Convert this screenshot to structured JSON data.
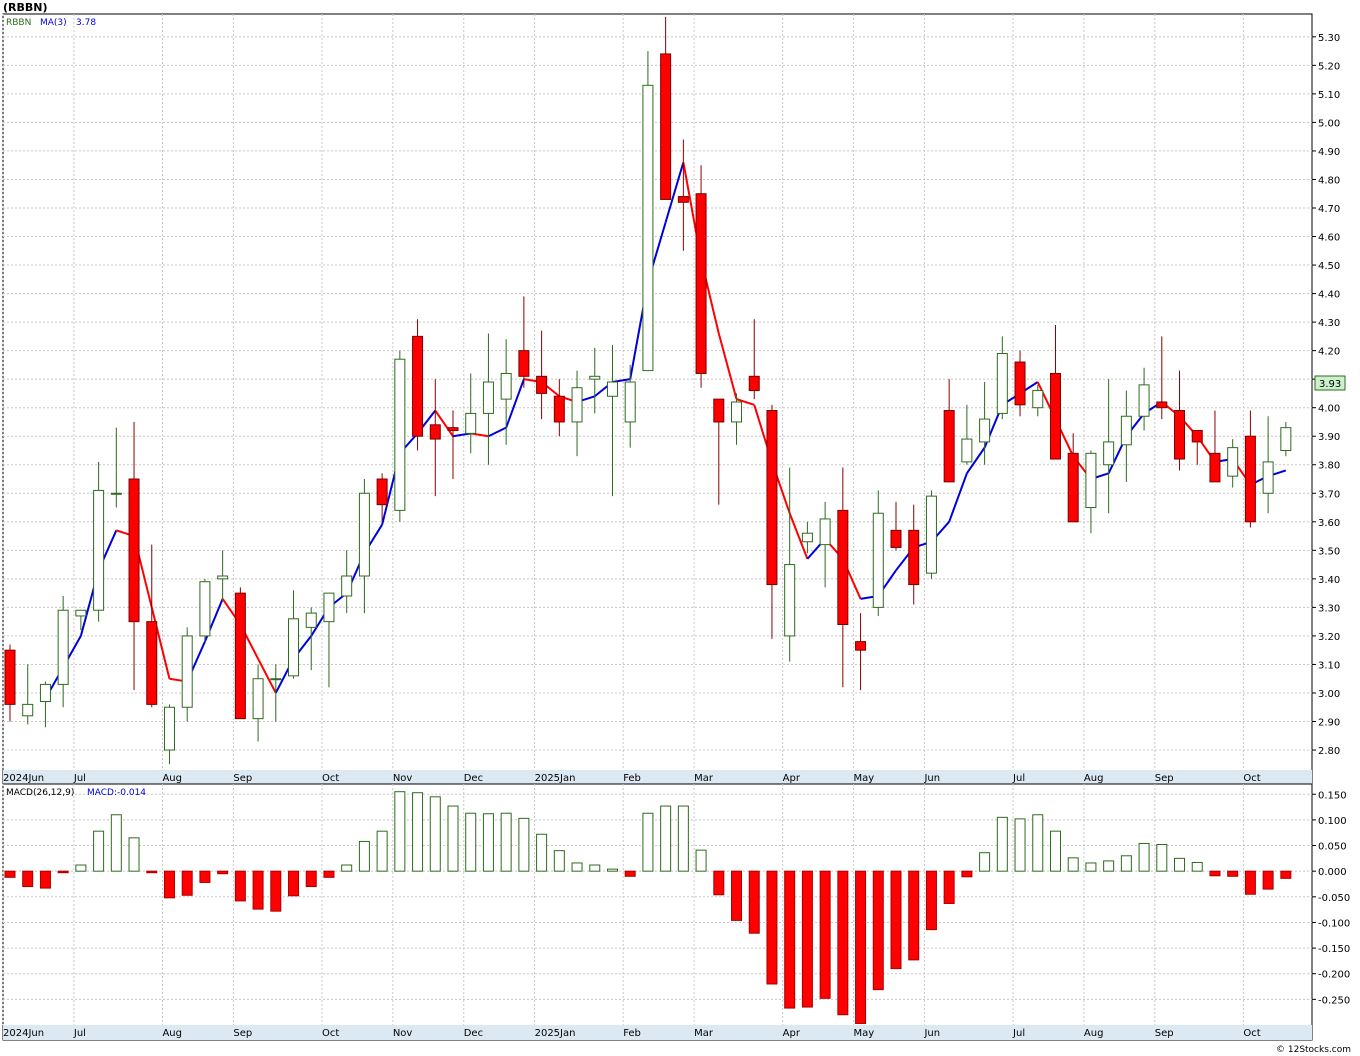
{
  "header": {
    "symbol_label": "(RBBN)"
  },
  "legend": {
    "symbol": "RBBN",
    "ma_label": "MA(3)",
    "ma_value": "3.78"
  },
  "macd_legend": {
    "label": "MACD(26,12,9)",
    "value_label": "MACD:-0.014"
  },
  "price_badge": "3.93",
  "footer": {
    "credit": "© 12Stocks.com"
  },
  "colors": {
    "up": "#2e6b1e",
    "down": "#ff0000",
    "ma_up": "#0000dd",
    "ma_down": "#ff0000",
    "grid": "#c8c8c8",
    "axis_band": "#dde9f2",
    "frame": "#000000"
  },
  "chart_data": [
    {
      "type": "candlestick",
      "series_name": "RBBN",
      "y_ticks": [
        "2.80",
        "2.90",
        "3.00",
        "3.10",
        "3.20",
        "3.30",
        "3.40",
        "3.50",
        "3.60",
        "3.70",
        "3.80",
        "3.90",
        "4.00",
        "4.10",
        "4.20",
        "4.30",
        "4.40",
        "4.50",
        "4.60",
        "4.70",
        "4.80",
        "4.90",
        "5.00",
        "5.10",
        "5.20",
        "5.30"
      ],
      "ylim": [
        2.73,
        5.38
      ],
      "x_labels": [
        {
          "label": "2024Jun",
          "i": 0
        },
        {
          "label": "Jul",
          "i": 4
        },
        {
          "label": "Aug",
          "i": 9
        },
        {
          "label": "Sep",
          "i": 13
        },
        {
          "label": "Oct",
          "i": 18
        },
        {
          "label": "Nov",
          "i": 22
        },
        {
          "label": "Dec",
          "i": 26
        },
        {
          "label": "2025Jan",
          "i": 30
        },
        {
          "label": "Feb",
          "i": 35
        },
        {
          "label": "Mar",
          "i": 39
        },
        {
          "label": "Apr",
          "i": 44
        },
        {
          "label": "May",
          "i": 48
        },
        {
          "label": "Jun",
          "i": 52
        },
        {
          "label": "Jul",
          "i": 57
        },
        {
          "label": "Aug",
          "i": 61
        },
        {
          "label": "Sep",
          "i": 65
        },
        {
          "label": "Oct",
          "i": 70
        }
      ],
      "candles": [
        [
          3.15,
          3.17,
          2.9,
          2.96
        ],
        [
          2.92,
          3.1,
          2.89,
          2.96
        ],
        [
          2.97,
          3.04,
          2.88,
          3.03
        ],
        [
          3.03,
          3.34,
          2.95,
          3.29
        ],
        [
          3.27,
          3.29,
          3.22,
          3.29
        ],
        [
          3.29,
          3.81,
          3.25,
          3.71
        ],
        [
          3.7,
          3.93,
          3.65,
          3.7
        ],
        [
          3.75,
          3.95,
          3.01,
          3.25
        ],
        [
          3.25,
          3.52,
          2.95,
          2.96
        ],
        [
          2.8,
          2.96,
          2.75,
          2.95
        ],
        [
          2.95,
          3.23,
          2.9,
          3.2
        ],
        [
          3.2,
          3.4,
          3.18,
          3.39
        ],
        [
          3.4,
          3.5,
          3.32,
          3.41
        ],
        [
          3.35,
          3.37,
          2.91,
          2.91
        ],
        [
          2.91,
          3.1,
          2.83,
          3.05
        ],
        [
          3.05,
          3.1,
          2.9,
          3.05
        ],
        [
          3.06,
          3.36,
          3.05,
          3.26
        ],
        [
          3.23,
          3.3,
          3.08,
          3.28
        ],
        [
          3.25,
          3.35,
          3.02,
          3.35
        ],
        [
          3.34,
          3.5,
          3.28,
          3.41
        ],
        [
          3.41,
          3.75,
          3.28,
          3.7
        ],
        [
          3.75,
          3.77,
          3.6,
          3.66
        ],
        [
          3.64,
          4.2,
          3.6,
          4.17
        ],
        [
          4.25,
          4.31,
          3.85,
          3.9
        ],
        [
          3.94,
          4.1,
          3.69,
          3.89
        ],
        [
          3.93,
          3.99,
          3.75,
          3.92
        ],
        [
          3.91,
          4.12,
          3.84,
          3.98
        ],
        [
          3.98,
          4.26,
          3.8,
          4.09
        ],
        [
          4.03,
          4.24,
          3.87,
          4.12
        ],
        [
          4.2,
          4.39,
          4.07,
          4.11
        ],
        [
          4.11,
          4.27,
          3.96,
          4.05
        ],
        [
          4.04,
          4.1,
          3.9,
          3.95
        ],
        [
          3.95,
          4.13,
          3.83,
          4.07
        ],
        [
          4.1,
          4.21,
          3.98,
          4.11
        ],
        [
          4.04,
          4.22,
          3.69,
          4.09
        ],
        [
          3.95,
          4.15,
          3.86,
          4.09
        ],
        [
          4.13,
          5.25,
          4.13,
          5.13
        ],
        [
          5.24,
          5.37,
          4.73,
          4.73
        ],
        [
          4.74,
          4.94,
          4.55,
          4.72
        ],
        [
          4.75,
          4.85,
          4.07,
          4.12
        ],
        [
          4.03,
          4.03,
          3.66,
          3.95
        ],
        [
          3.95,
          4.05,
          3.87,
          4.02
        ],
        [
          4.11,
          4.31,
          4.03,
          4.06
        ],
        [
          3.99,
          4.01,
          3.19,
          3.38
        ],
        [
          3.2,
          3.79,
          3.11,
          3.45
        ],
        [
          3.53,
          3.6,
          3.49,
          3.56
        ],
        [
          3.52,
          3.67,
          3.37,
          3.61
        ],
        [
          3.64,
          3.79,
          3.02,
          3.24
        ],
        [
          3.18,
          3.28,
          3.01,
          3.15
        ],
        [
          3.3,
          3.71,
          3.27,
          3.63
        ],
        [
          3.57,
          3.67,
          3.5,
          3.51
        ],
        [
          3.57,
          3.66,
          3.31,
          3.38
        ],
        [
          3.42,
          3.71,
          3.4,
          3.69
        ],
        [
          3.99,
          4.1,
          3.74,
          3.74
        ],
        [
          3.81,
          4.01,
          3.8,
          3.89
        ],
        [
          3.88,
          4.09,
          3.8,
          3.96
        ],
        [
          3.98,
          4.25,
          3.96,
          4.19
        ],
        [
          4.16,
          4.2,
          3.97,
          4.01
        ],
        [
          4.0,
          4.08,
          3.97,
          4.06
        ],
        [
          4.12,
          4.29,
          3.82,
          3.82
        ],
        [
          3.84,
          3.91,
          3.6,
          3.6
        ],
        [
          3.65,
          3.85,
          3.56,
          3.84
        ],
        [
          3.8,
          4.1,
          3.63,
          3.88
        ],
        [
          3.87,
          4.06,
          3.74,
          3.97
        ],
        [
          3.97,
          4.14,
          3.92,
          4.08
        ],
        [
          4.02,
          4.25,
          3.96,
          4.0
        ],
        [
          3.99,
          4.13,
          3.78,
          3.82
        ],
        [
          3.92,
          3.92,
          3.8,
          3.88
        ],
        [
          3.84,
          3.99,
          3.74,
          3.74
        ],
        [
          3.76,
          3.89,
          3.72,
          3.86
        ],
        [
          3.9,
          3.99,
          3.58,
          3.6
        ],
        [
          3.7,
          3.97,
          3.63,
          3.81
        ],
        [
          3.85,
          3.95,
          3.83,
          3.93
        ]
      ],
      "ma3": [
        null,
        null,
        2.98,
        3.09,
        3.2,
        3.43,
        3.57,
        3.55,
        3.3,
        3.05,
        3.04,
        3.18,
        3.33,
        3.24,
        3.12,
        3.0,
        3.12,
        3.2,
        3.3,
        3.35,
        3.49,
        3.59,
        3.84,
        3.91,
        3.99,
        3.9,
        3.91,
        3.9,
        3.93,
        4.1,
        4.09,
        4.04,
        4.02,
        4.04,
        4.09,
        4.1,
        4.44,
        4.65,
        4.86,
        4.52,
        4.26,
        4.03,
        4.01,
        3.81,
        3.63,
        3.47,
        3.54,
        3.47,
        3.33,
        3.34,
        3.43,
        3.51,
        3.53,
        3.6,
        3.77,
        3.86,
        4.01,
        4.05,
        4.09,
        3.96,
        3.83,
        3.75,
        3.77,
        3.9,
        3.98,
        4.02,
        3.97,
        3.9,
        3.81,
        3.82,
        3.73,
        3.76,
        3.78
      ]
    },
    {
      "type": "bar",
      "series_name": "MACD(26,12,9)",
      "y_ticks": [
        "-0.250",
        "-0.200",
        "-0.150",
        "-0.100",
        "-0.050",
        "0.000",
        "0.050",
        "0.100",
        "0.150"
      ],
      "ylim": [
        -0.3,
        0.17
      ],
      "values": [
        -0.012,
        -0.03,
        -0.033,
        -0.003,
        0.012,
        0.078,
        0.11,
        0.065,
        -0.003,
        -0.052,
        -0.047,
        -0.022,
        -0.005,
        -0.058,
        -0.074,
        -0.078,
        -0.048,
        -0.03,
        -0.012,
        0.012,
        0.058,
        0.078,
        0.155,
        0.153,
        0.145,
        0.127,
        0.113,
        0.112,
        0.113,
        0.103,
        0.072,
        0.04,
        0.016,
        0.012,
        0.004,
        -0.01,
        0.113,
        0.127,
        0.127,
        0.041,
        -0.046,
        -0.096,
        -0.121,
        -0.22,
        -0.267,
        -0.265,
        -0.248,
        -0.28,
        -0.297,
        -0.231,
        -0.19,
        -0.173,
        -0.114,
        -0.063,
        -0.011,
        0.036,
        0.105,
        0.102,
        0.11,
        0.078,
        0.026,
        0.016,
        0.02,
        0.03,
        0.054,
        0.052,
        0.025,
        0.017,
        -0.009,
        -0.01,
        -0.045,
        -0.035,
        -0.014
      ],
      "x_labels_shared_with_price": true
    }
  ]
}
